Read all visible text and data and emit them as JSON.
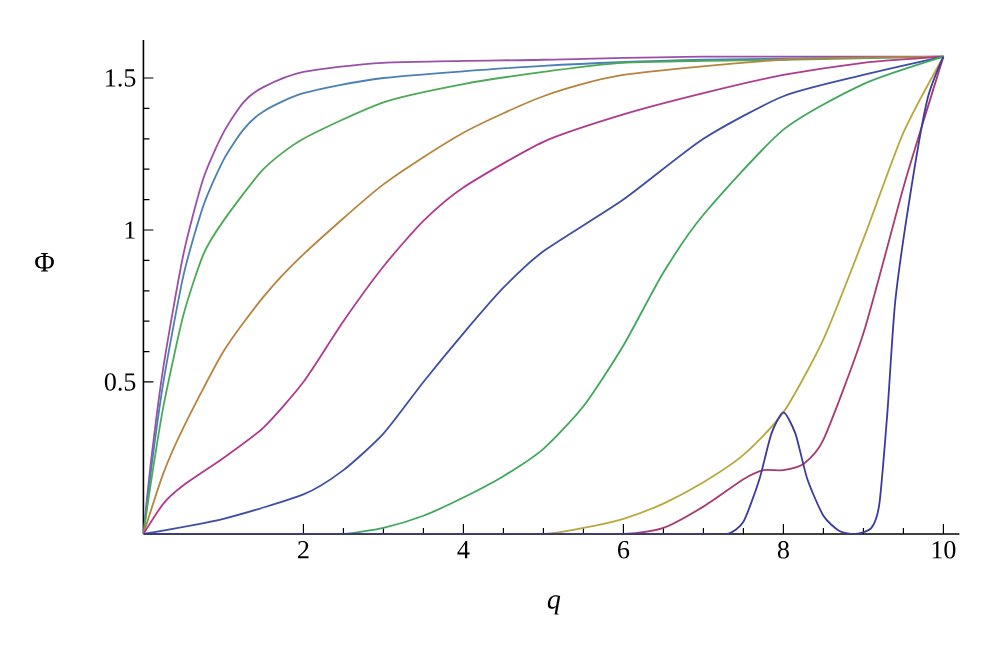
{
  "chart_data": {
    "type": "line",
    "xlabel": "*q*",
    "ylabel": "Φ",
    "xlim": [
      0,
      10.2
    ],
    "ylim": [
      0,
      1.625
    ],
    "xticks": [
      2,
      4,
      6,
      8,
      10
    ],
    "yticks": [
      0.5,
      1,
      1.5
    ],
    "marker": "none",
    "line_style": "solid",
    "series": [
      {
        "color": "#9a4fa8",
        "x": [
          0,
          0.1,
          0.25,
          0.5,
          0.75,
          1,
          1.25,
          1.5,
          2,
          3,
          5,
          7,
          10
        ],
        "values": [
          0,
          0.25,
          0.55,
          0.92,
          1.17,
          1.32,
          1.42,
          1.47,
          1.52,
          1.55,
          1.56,
          1.57,
          1.57
        ]
      },
      {
        "color": "#4a80b5",
        "x": [
          0,
          0.1,
          0.25,
          0.5,
          0.75,
          1,
          1.25,
          1.5,
          2,
          3,
          5,
          7,
          10
        ],
        "values": [
          0,
          0.22,
          0.5,
          0.85,
          1.08,
          1.23,
          1.33,
          1.39,
          1.45,
          1.5,
          1.54,
          1.56,
          1.57
        ]
      },
      {
        "color": "#4caa55",
        "x": [
          0,
          0.1,
          0.25,
          0.5,
          0.75,
          1,
          1.5,
          2,
          3,
          4,
          5,
          6,
          8,
          10
        ],
        "values": [
          0,
          0.18,
          0.42,
          0.72,
          0.92,
          1.03,
          1.2,
          1.3,
          1.42,
          1.48,
          1.52,
          1.55,
          1.56,
          1.57
        ]
      },
      {
        "color": "#b7843f",
        "x": [
          0,
          0.25,
          0.5,
          1,
          1.5,
          2,
          3,
          4,
          5,
          6,
          8,
          10
        ],
        "values": [
          0,
          0.2,
          0.35,
          0.6,
          0.78,
          0.92,
          1.15,
          1.32,
          1.44,
          1.51,
          1.56,
          1.57
        ]
      },
      {
        "color": "#b03a8e",
        "x": [
          0,
          0.25,
          0.5,
          1,
          1.5,
          2,
          2.5,
          3,
          3.5,
          4,
          5,
          6,
          7,
          8,
          9,
          10
        ],
        "values": [
          0,
          0.1,
          0.16,
          0.25,
          0.35,
          0.5,
          0.7,
          0.88,
          1.03,
          1.14,
          1.29,
          1.38,
          1.45,
          1.51,
          1.55,
          1.57
        ]
      },
      {
        "color": "#3f4ea5",
        "x": [
          0,
          1,
          2,
          2.5,
          3,
          3.5,
          4,
          4.5,
          5,
          6,
          7,
          8,
          9,
          10
        ],
        "values": [
          0,
          0.05,
          0.13,
          0.21,
          0.33,
          0.5,
          0.66,
          0.81,
          0.93,
          1.1,
          1.3,
          1.44,
          1.51,
          1.57
        ]
      },
      {
        "color": "#3ea85c",
        "x": [
          0,
          1,
          2,
          2.5,
          3,
          3.5,
          4,
          4.5,
          5,
          5.5,
          6,
          6.5,
          7,
          8,
          9,
          10
        ],
        "values": [
          0,
          0,
          0,
          0,
          0.02,
          0.06,
          0.12,
          0.19,
          0.28,
          0.42,
          0.62,
          0.86,
          1.05,
          1.33,
          1.48,
          1.57
        ]
      },
      {
        "color": "#b8a83c",
        "x": [
          0,
          2,
          4,
          5,
          5.5,
          6,
          6.5,
          7,
          7.5,
          8,
          8.5,
          9,
          9.5,
          10
        ],
        "values": [
          0,
          0,
          0,
          0,
          0.02,
          0.05,
          0.1,
          0.17,
          0.26,
          0.4,
          0.64,
          0.97,
          1.32,
          1.57
        ]
      },
      {
        "color": "#a83a70",
        "x": [
          0,
          2,
          4,
          5,
          6,
          6.5,
          7,
          7.5,
          7.75,
          8,
          8.25,
          8.5,
          9,
          9.5,
          9.8,
          10
        ],
        "values": [
          0,
          0,
          0,
          0,
          0,
          0.02,
          0.09,
          0.18,
          0.21,
          0.21,
          0.23,
          0.31,
          0.66,
          1.14,
          1.4,
          1.57
        ]
      },
      {
        "color": "#3a3aa0",
        "x": [
          0,
          2,
          4,
          6,
          7,
          7.3,
          7.5,
          7.7,
          7.85,
          8,
          8.15,
          8.3,
          8.5,
          8.7,
          8.9,
          9.1,
          9.2,
          9.3,
          9.4,
          9.6,
          9.8,
          10
        ],
        "values": [
          0,
          0,
          0,
          0,
          0,
          0,
          0.04,
          0.18,
          0.33,
          0.4,
          0.33,
          0.18,
          0.06,
          0.01,
          0,
          0.02,
          0.1,
          0.4,
          0.77,
          1.14,
          1.43,
          1.57
        ]
      }
    ]
  }
}
